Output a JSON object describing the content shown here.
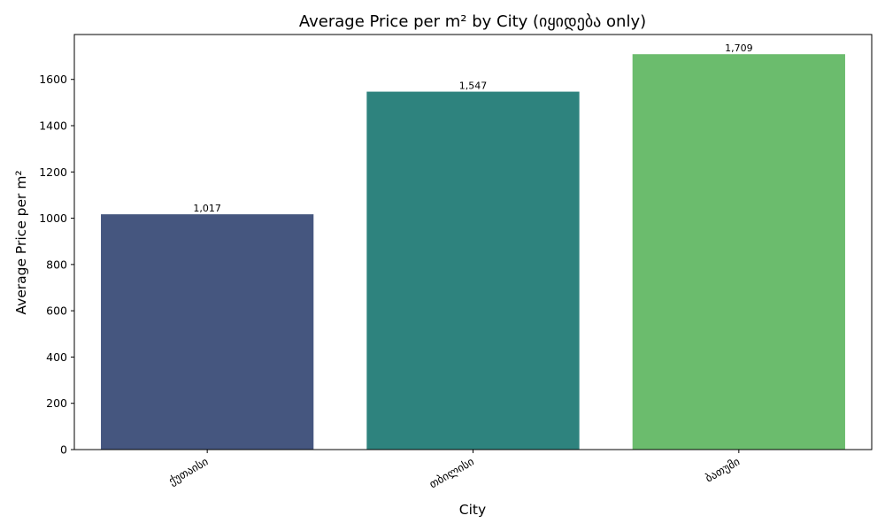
{
  "chart_data": {
    "type": "bar",
    "title": "Average Price per m² by City (იყიდება only)",
    "xlabel": "City",
    "ylabel": "Average Price per m²",
    "categories": [
      "ქუთაისი",
      "თბილისი",
      "ბათუმი"
    ],
    "values": [
      1017,
      1547,
      1709
    ],
    "value_labels": [
      "1,017",
      "1,547",
      "1,709"
    ],
    "ylim": [
      0,
      1794
    ],
    "yticks": [
      0,
      200,
      400,
      600,
      800,
      1000,
      1200,
      1400,
      1600
    ],
    "ytick_labels": [
      "0",
      "200",
      "400",
      "600",
      "800",
      "1000",
      "1200",
      "1400",
      "1600"
    ],
    "colors": [
      "#45567f",
      "#2e837e",
      "#6bbc6d"
    ],
    "grid": false,
    "legend": "none"
  }
}
